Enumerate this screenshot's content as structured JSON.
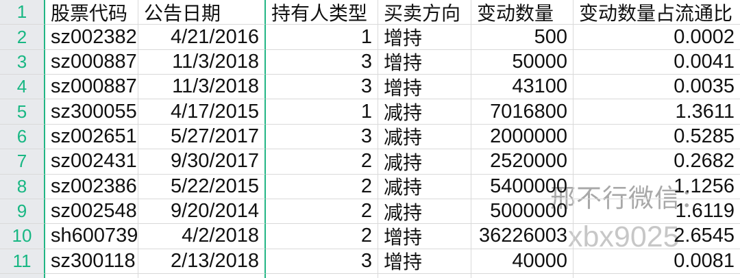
{
  "sheet": {
    "header": {
      "row_number": "1",
      "stock_code": "股票代码",
      "announce_date": "公告日期",
      "holder_type": "持有人类型",
      "direction": "买卖方向",
      "change_qty": "变动数量",
      "change_ratio": "变动数量占流通比"
    },
    "rows": [
      {
        "num": "2",
        "code": "sz002382",
        "date": "4/21/2016",
        "type": "1",
        "dir": "增持",
        "qty": "500",
        "ratio": "0.0002"
      },
      {
        "num": "3",
        "code": "sz000887",
        "date": "11/3/2018",
        "type": "3",
        "dir": "增持",
        "qty": "50000",
        "ratio": "0.0041"
      },
      {
        "num": "4",
        "code": "sz000887",
        "date": "11/3/2018",
        "type": "3",
        "dir": "增持",
        "qty": "43100",
        "ratio": "0.0035"
      },
      {
        "num": "5",
        "code": "sz300055",
        "date": "4/17/2015",
        "type": "1",
        "dir": "减持",
        "qty": "7016800",
        "ratio": "1.3611"
      },
      {
        "num": "6",
        "code": "sz002651",
        "date": "5/27/2017",
        "type": "3",
        "dir": "减持",
        "qty": "2000000",
        "ratio": "0.5285"
      },
      {
        "num": "7",
        "code": "sz002431",
        "date": "9/30/2017",
        "type": "2",
        "dir": "减持",
        "qty": "2520000",
        "ratio": "0.2682"
      },
      {
        "num": "8",
        "code": "sz002386",
        "date": "5/22/2015",
        "type": "2",
        "dir": "减持",
        "qty": "5400000",
        "ratio": "1.1256"
      },
      {
        "num": "9",
        "code": "sz002548",
        "date": "9/20/2014",
        "type": "2",
        "dir": "减持",
        "qty": "5000000",
        "ratio": "1.6119"
      },
      {
        "num": "10",
        "code": "sh600739",
        "date": "4/2/2018",
        "type": "2",
        "dir": "增持",
        "qty": "36226003",
        "ratio": "2.6545"
      },
      {
        "num": "11",
        "code": "sz300118",
        "date": "2/13/2018",
        "type": "3",
        "dir": "增持",
        "qty": "40000",
        "ratio": "0.0081"
      }
    ],
    "watermark": {
      "line1": "邢不行微信：",
      "line2": "xbx9025"
    },
    "colors": {
      "accent_green": "#22b685",
      "row_number_text": "#18b783",
      "row_number_bg": "#e8eaed",
      "gridline": "#d9d9d9",
      "text": "#111111",
      "watermark_dark": "#a8a8a8",
      "watermark_light": "#c7c7c7"
    }
  }
}
